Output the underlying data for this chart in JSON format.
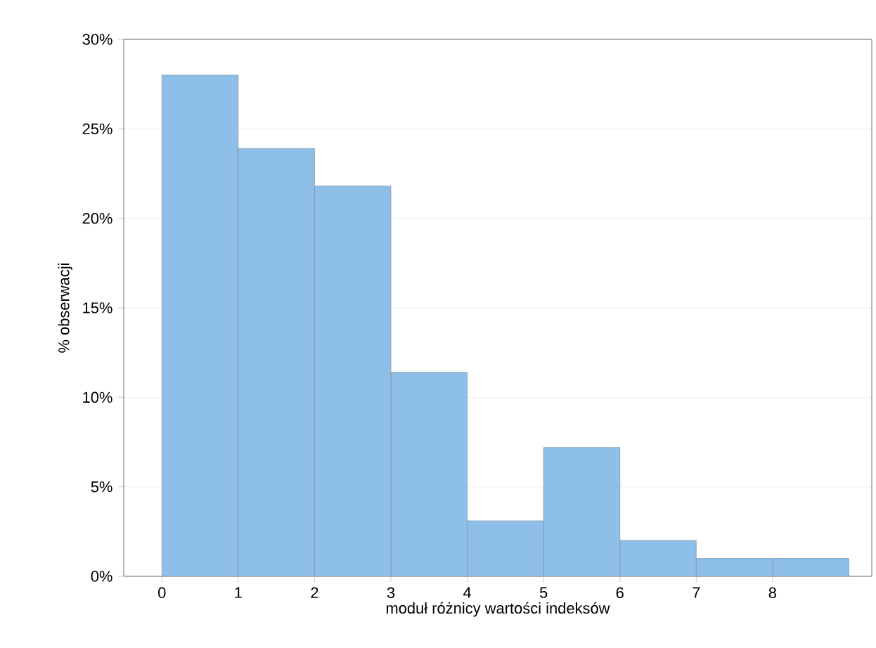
{
  "chart_data": {
    "type": "histogram",
    "xlabel": "moduł różnicy wartości indeksów",
    "ylabel": "% obserwacji",
    "bins": [
      0,
      1,
      2,
      3,
      4,
      5,
      6,
      7,
      8,
      9
    ],
    "values": [
      28.0,
      23.9,
      21.8,
      11.4,
      3.1,
      7.2,
      2.0,
      1.0,
      1.0
    ],
    "color": "#8dbfe8",
    "xlim": [
      -0.5,
      9.3
    ],
    "ylim": [
      0,
      30
    ],
    "xticks": [
      0,
      1,
      2,
      3,
      4,
      5,
      6,
      7,
      8
    ],
    "yticks": [
      {
        "value": 0,
        "label": "0%"
      },
      {
        "value": 5,
        "label": "5%"
      },
      {
        "value": 10,
        "label": "10%"
      },
      {
        "value": 15,
        "label": "15%"
      },
      {
        "value": 20,
        "label": "20%"
      },
      {
        "value": 25,
        "label": "25%"
      },
      {
        "value": 30,
        "label": "30%"
      }
    ],
    "grid": "y"
  }
}
